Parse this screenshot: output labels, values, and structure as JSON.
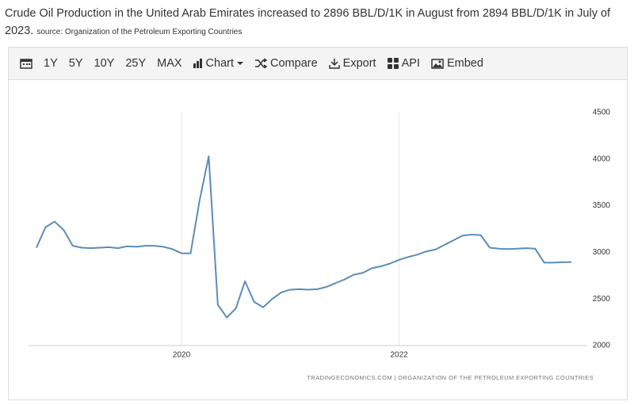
{
  "header": {
    "title": "Crude Oil Production in the United Arab Emirates increased to 2896 BBL/D/1K in August from 2894 BBL/D/1K in July of 2023.",
    "source": "source: Organization of the Petroleum Exporting Countries"
  },
  "toolbar": {
    "ranges": [
      "1Y",
      "5Y",
      "10Y",
      "25Y",
      "MAX"
    ],
    "chart": "Chart",
    "compare": "Compare",
    "export": "Export",
    "api": "API",
    "embed": "Embed"
  },
  "chart_data": {
    "type": "line",
    "categories": [
      null,
      null,
      null,
      null,
      null,
      null,
      null,
      null,
      null,
      null,
      null,
      null,
      null,
      null,
      null,
      null,
      "2020",
      null,
      null,
      null,
      null,
      null,
      null,
      null,
      null,
      null,
      null,
      null,
      null,
      null,
      null,
      null,
      null,
      null,
      null,
      null,
      null,
      null,
      null,
      null,
      "2022",
      null,
      null,
      null,
      null,
      null,
      null,
      null,
      null,
      null,
      null,
      null,
      null,
      null,
      null,
      null,
      null,
      null,
      null,
      null
    ],
    "series": [
      {
        "color": "#5b8db8",
        "values": [
          3050,
          3270,
          3330,
          3240,
          3070,
          3050,
          3045,
          3050,
          3055,
          3045,
          3065,
          3060,
          3070,
          3070,
          3060,
          3035,
          2990,
          2990,
          3560,
          4030,
          2440,
          2300,
          2400,
          2690,
          2470,
          2410,
          2500,
          2570,
          2600,
          2605,
          2600,
          2605,
          2630,
          2670,
          2710,
          2760,
          2780,
          2830,
          2850,
          2880,
          2920,
          2950,
          2975,
          3010,
          3030,
          3080,
          3130,
          3180,
          3190,
          3185,
          3050,
          3040,
          3035,
          3040,
          3045,
          3040,
          2890,
          2890,
          2894,
          2896
        ]
      }
    ],
    "ylim": [
      2000,
      4500
    ],
    "yticks": [
      2000,
      2500,
      3000,
      3500,
      4000,
      4500
    ],
    "grid": true,
    "credit": "TRADINGECONOMICS.COM | ORGANIZATION OF THE PETROLEUM EXPORTING COUNTRIES"
  }
}
